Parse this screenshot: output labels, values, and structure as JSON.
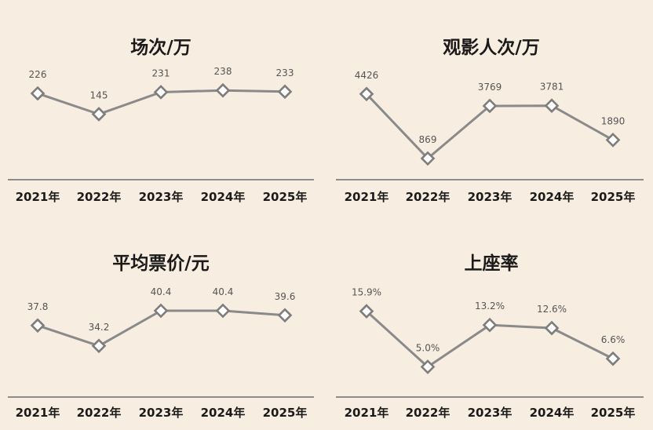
{
  "colors": {
    "background": "#f8ede1",
    "line": "#8a8a8a",
    "marker_fill": "#ffffff",
    "marker_stroke": "#7d7d7d",
    "axis": "#8c8c8c"
  },
  "chart_data": [
    {
      "type": "line",
      "title": "场次/万",
      "categories": [
        "2021年",
        "2022年",
        "2023年",
        "2024年",
        "2025年"
      ],
      "values": [
        226,
        145,
        231,
        238,
        233
      ],
      "labels": [
        "226",
        "145",
        "231",
        "238",
        "233"
      ],
      "ylim": [
        -90,
        300
      ],
      "marker": "diamond",
      "grid": false
    },
    {
      "type": "line",
      "title": "观影人次/万",
      "categories": [
        "2021年",
        "2022年",
        "2023年",
        "2024年",
        "2025年"
      ],
      "values": [
        4426,
        869,
        3769,
        3781,
        1890
      ],
      "labels": [
        "4426",
        "869",
        "3769",
        "3781",
        "1890"
      ],
      "ylim": [
        0,
        5500
      ],
      "marker": "diamond",
      "grid": false
    },
    {
      "type": "line",
      "title": "平均票价/元",
      "categories": [
        "2021年",
        "2022年",
        "2023年",
        "2024年",
        "2025年"
      ],
      "values": [
        37.8,
        34.2,
        40.4,
        40.4,
        39.6
      ],
      "labels": [
        "37.8",
        "34.2",
        "40.4",
        "40.4",
        "39.6"
      ],
      "ylim": [
        26,
        44
      ],
      "marker": "diamond",
      "grid": false
    },
    {
      "type": "line",
      "title": "上座率",
      "categories": [
        "2021年",
        "2022年",
        "2023年",
        "2024年",
        "2025年"
      ],
      "values": [
        15.9,
        5.0,
        13.2,
        12.6,
        6.6
      ],
      "labels": [
        "15.9%",
        "5.0%",
        "13.2%",
        "12.6%",
        "6.6%"
      ],
      "ylim": [
        0,
        20
      ],
      "marker": "diamond",
      "grid": false
    }
  ]
}
